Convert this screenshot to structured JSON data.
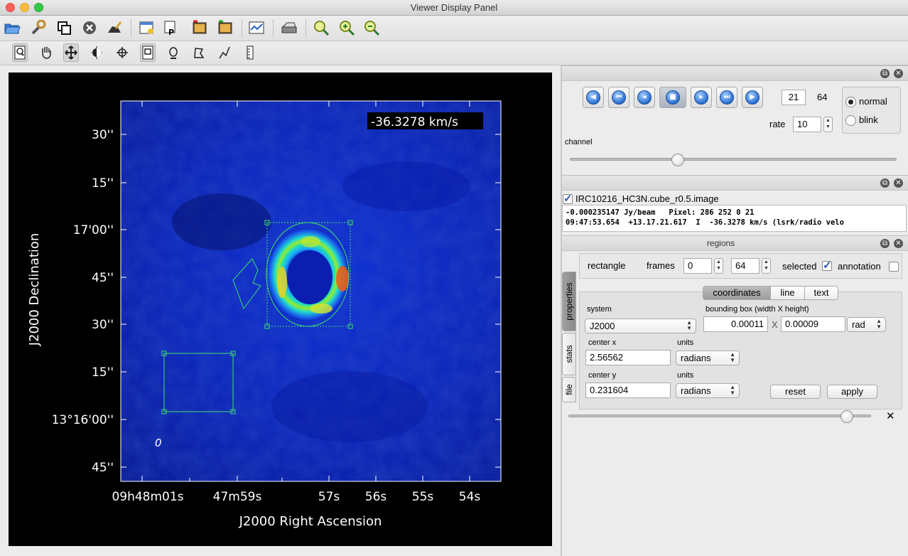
{
  "window": {
    "title": "Viewer Display Panel"
  },
  "toolbar_main": {
    "icons": [
      "open-folder-icon",
      "wrench-icon",
      "copy-panel-icon",
      "close-panel-icon",
      "hand-pen-icon",
      "new-panel-icon",
      "postscript-icon",
      "save-image-icon",
      "export-image-icon",
      "profile-icon",
      "print-icon",
      "zoom-fit-icon",
      "zoom-in-icon",
      "zoom-out-icon"
    ]
  },
  "toolbar_mouse": {
    "icons": [
      "zoom-tool-icon",
      "pan-tool-icon",
      "move-tool-icon",
      "contrast-tool-icon",
      "crosshair-tool-icon",
      "rectangle-region-icon",
      "ellipse-region-icon",
      "polygon-region-icon",
      "polyline-icon",
      "ruler-icon"
    ]
  },
  "image": {
    "velocity_label": "-36.3278 km/s",
    "dec_axis_label": "J2000 Declination",
    "ra_axis_label": "J2000 Right Ascension",
    "dec_ticks": [
      "30''",
      "15''",
      "17'00''",
      "45''",
      "30''",
      "15''",
      "13°16'00''",
      "45''"
    ],
    "ra_ticks": [
      "09h48m01s",
      "47m59s",
      "57s",
      "56s",
      "55s",
      "54s"
    ],
    "region_marker": "0"
  },
  "animator": {
    "buttons": [
      "rewind-icon",
      "to-start-icon",
      "step-back-icon",
      "stop-icon",
      "play-icon",
      "to-end-icon",
      "fast-forward-icon"
    ],
    "frame": "21",
    "total": "64",
    "rate_label": "rate",
    "rate": "10",
    "mode_normal": "normal",
    "mode_blink": "blink",
    "channel_label": "channel",
    "channel_position": 0.33
  },
  "cursor": {
    "image_name": "IRC10216_HC3N.cube_r0.5.image",
    "line1": "-0.000235147 Jy/beam   Pixel: 286 252 0 21",
    "line2": "09:47:53.654  +13.17.21.617  I  -36.3278 km/s (lsrk/radio velo"
  },
  "regions": {
    "title": "regions",
    "type": "rectangle",
    "frames_label": "frames",
    "frame_from": "0",
    "frame_to": "64",
    "selected_label": "selected",
    "annotation_label": "annotation",
    "tabs": {
      "properties": "properties",
      "stats": "stats",
      "file": "file"
    },
    "subtabs": {
      "coordinates": "coordinates",
      "line": "line",
      "text": "text"
    },
    "system_label": "system",
    "system": "J2000",
    "bbox_label": "bounding box (width X height)",
    "bbox_width": "0.00011",
    "bbox_x": "X",
    "bbox_height": "0.00009",
    "bbox_units": "rad",
    "center_x_label": "center x",
    "center_x": "2.56562",
    "center_y_label": "center y",
    "center_y": "0.231604",
    "units_label": "units",
    "units_x": "radians",
    "units_y": "radians",
    "reset": "reset",
    "apply": "apply",
    "slider_position": 0.92,
    "close_glyph": "✕"
  }
}
